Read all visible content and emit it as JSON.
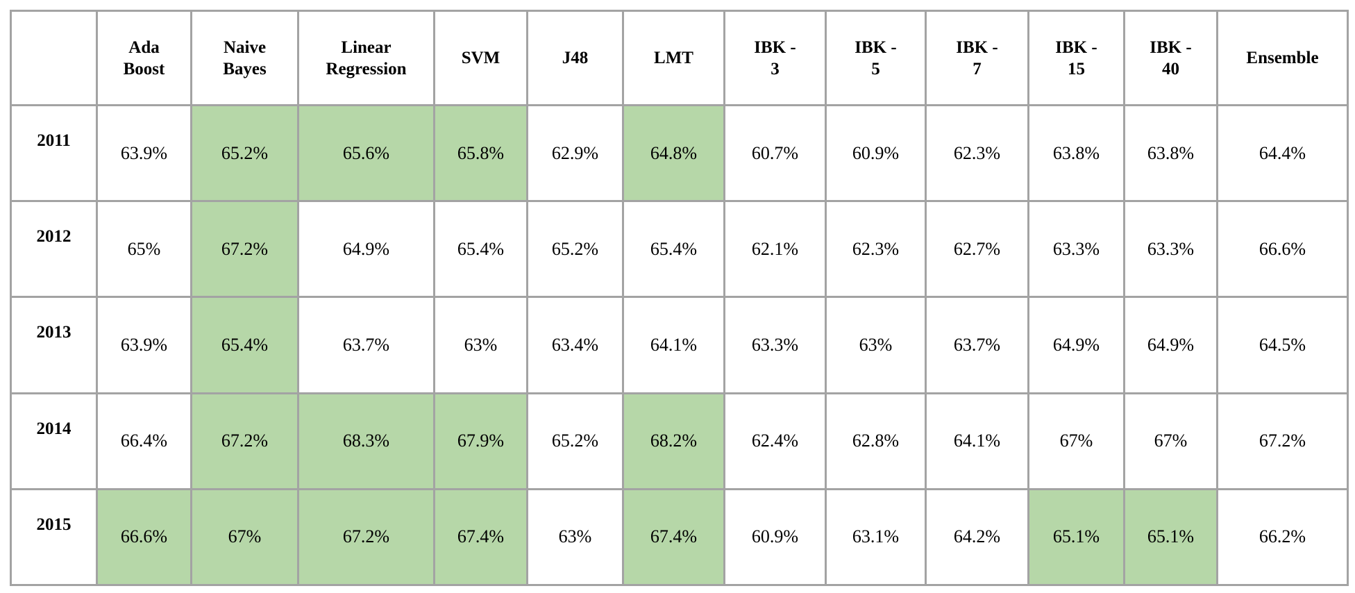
{
  "highlight_color": "#b6d7a8",
  "columns": [
    {
      "line1": "Ada",
      "line2": "Boost"
    },
    {
      "line1": "Naive",
      "line2": "Bayes"
    },
    {
      "line1": "Linear",
      "line2": "Regression"
    },
    {
      "line1": "SVM",
      "line2": ""
    },
    {
      "line1": "J48",
      "line2": ""
    },
    {
      "line1": "LMT",
      "line2": ""
    },
    {
      "line1": "IBK -",
      "line2": "3"
    },
    {
      "line1": "IBK -",
      "line2": "5"
    },
    {
      "line1": "IBK -",
      "line2": "7"
    },
    {
      "line1": "IBK -",
      "line2": "15"
    },
    {
      "line1": "IBK -",
      "line2": "40"
    },
    {
      "line1": "Ensemble",
      "line2": ""
    }
  ],
  "rows": [
    {
      "year": "2011",
      "values": [
        "63.9%",
        "65.2%",
        "65.6%",
        "65.8%",
        "62.9%",
        "64.8%",
        "60.7%",
        "60.9%",
        "62.3%",
        "63.8%",
        "63.8%",
        "64.4%"
      ],
      "highlighted": [
        false,
        true,
        true,
        true,
        false,
        true,
        false,
        false,
        false,
        false,
        false,
        false
      ]
    },
    {
      "year": "2012",
      "values": [
        "65%",
        "67.2%",
        "64.9%",
        "65.4%",
        "65.2%",
        "65.4%",
        "62.1%",
        "62.3%",
        "62.7%",
        "63.3%",
        "63.3%",
        "66.6%"
      ],
      "highlighted": [
        false,
        true,
        false,
        false,
        false,
        false,
        false,
        false,
        false,
        false,
        false,
        false
      ]
    },
    {
      "year": "2013",
      "values": [
        "63.9%",
        "65.4%",
        "63.7%",
        "63%",
        "63.4%",
        "64.1%",
        "63.3%",
        "63%",
        "63.7%",
        "64.9%",
        "64.9%",
        "64.5%"
      ],
      "highlighted": [
        false,
        true,
        false,
        false,
        false,
        false,
        false,
        false,
        false,
        false,
        false,
        false
      ]
    },
    {
      "year": "2014",
      "values": [
        "66.4%",
        "67.2%",
        "68.3%",
        "67.9%",
        "65.2%",
        "68.2%",
        "62.4%",
        "62.8%",
        "64.1%",
        "67%",
        "67%",
        "67.2%"
      ],
      "highlighted": [
        false,
        true,
        true,
        true,
        false,
        true,
        false,
        false,
        false,
        false,
        false,
        false
      ]
    },
    {
      "year": "2015",
      "values": [
        "66.6%",
        "67%",
        "67.2%",
        "67.4%",
        "63%",
        "67.4%",
        "60.9%",
        "63.1%",
        "64.2%",
        "65.1%",
        "65.1%",
        "66.2%"
      ],
      "highlighted": [
        true,
        true,
        true,
        true,
        false,
        true,
        false,
        false,
        false,
        true,
        true,
        false
      ]
    }
  ]
}
